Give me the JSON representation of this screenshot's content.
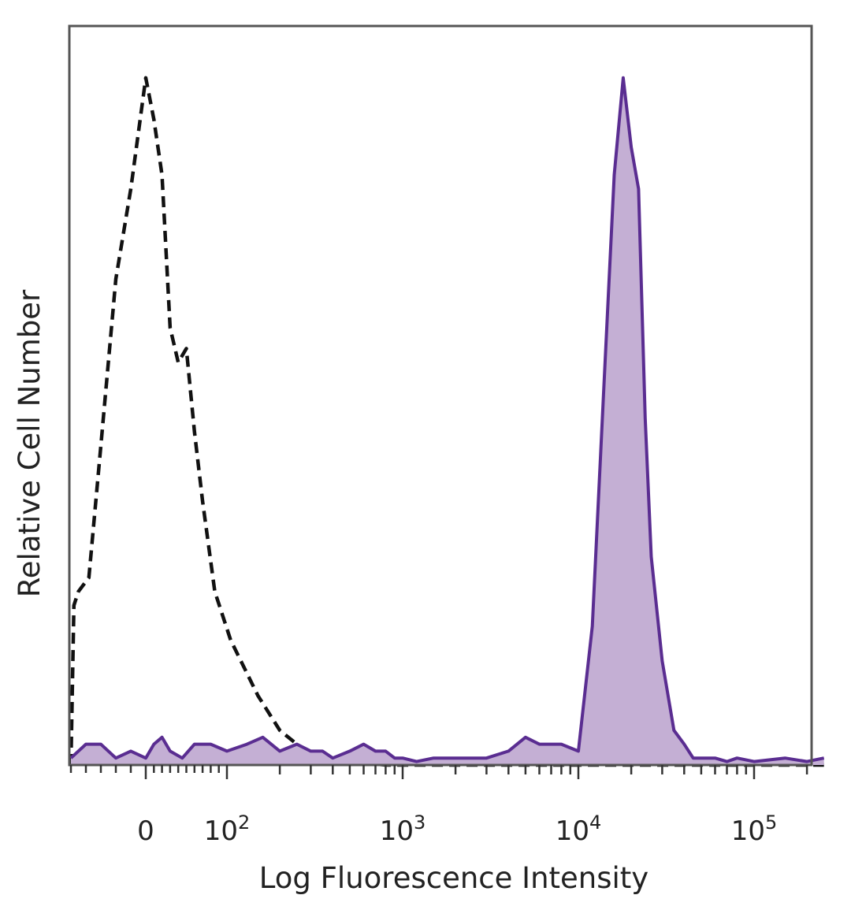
{
  "chart_data": {
    "type": "area",
    "xlabel": "Log Fluorescence Intensity",
    "ylabel": "Relative Cell Number",
    "x_scale": "biexponential",
    "xlim": [
      -50,
      250000
    ],
    "ylim": [
      0,
      1.0
    ],
    "grid": false,
    "x_ticks": [
      {
        "value": 0,
        "label": "0"
      },
      {
        "value": 100,
        "label": "10",
        "sup": "2"
      },
      {
        "value": 1000,
        "label": "10",
        "sup": "3"
      },
      {
        "value": 10000,
        "label": "10",
        "sup": "4"
      },
      {
        "value": 100000,
        "label": "10",
        "sup": "5"
      }
    ],
    "series": [
      {
        "style": "dashed-outline",
        "color": "#111111",
        "x": [
          -50,
          -48,
          -45,
          -38,
          -30,
          -20,
          -10,
          0,
          10,
          20,
          30,
          40,
          50,
          60,
          70,
          85,
          105,
          150,
          200,
          280,
          350,
          450,
          600,
          800,
          1000,
          5000,
          10000,
          250000
        ],
        "y": [
          0,
          0.23,
          0.25,
          0.27,
          0.46,
          0.7,
          0.83,
          0.99,
          0.93,
          0.85,
          0.63,
          0.58,
          0.6,
          0.48,
          0.38,
          0.25,
          0.18,
          0.1,
          0.05,
          0.02,
          0.005,
          0.01,
          0.003,
          0,
          0,
          0,
          0,
          0
        ]
      },
      {
        "style": "filled",
        "color": "#5a2d91",
        "fill": "#c4afd4",
        "x": [
          -50,
          -40,
          -30,
          -20,
          -10,
          0,
          10,
          20,
          30,
          45,
          60,
          80,
          100,
          130,
          160,
          200,
          250,
          300,
          350,
          400,
          500,
          600,
          700,
          800,
          900,
          1000,
          1200,
          1500,
          2000,
          3000,
          4000,
          5000,
          6000,
          8000,
          10000,
          12000,
          14000,
          16000,
          18000,
          20000,
          22000,
          24000,
          26000,
          30000,
          35000,
          40000,
          45000,
          50000,
          60000,
          70000,
          80000,
          100000,
          150000,
          200000,
          250000
        ],
        "y": [
          0.01,
          0.03,
          0.03,
          0.01,
          0.02,
          0.01,
          0.03,
          0.04,
          0.02,
          0.01,
          0.03,
          0.03,
          0.02,
          0.03,
          0.04,
          0.02,
          0.03,
          0.02,
          0.02,
          0.01,
          0.02,
          0.03,
          0.02,
          0.02,
          0.01,
          0.01,
          0.005,
          0.01,
          0.01,
          0.01,
          0.02,
          0.04,
          0.03,
          0.03,
          0.02,
          0.2,
          0.55,
          0.85,
          0.99,
          0.89,
          0.83,
          0.5,
          0.3,
          0.15,
          0.05,
          0.03,
          0.01,
          0.01,
          0.01,
          0.005,
          0.01,
          0.005,
          0.01,
          0.005,
          0.01
        ]
      }
    ]
  }
}
